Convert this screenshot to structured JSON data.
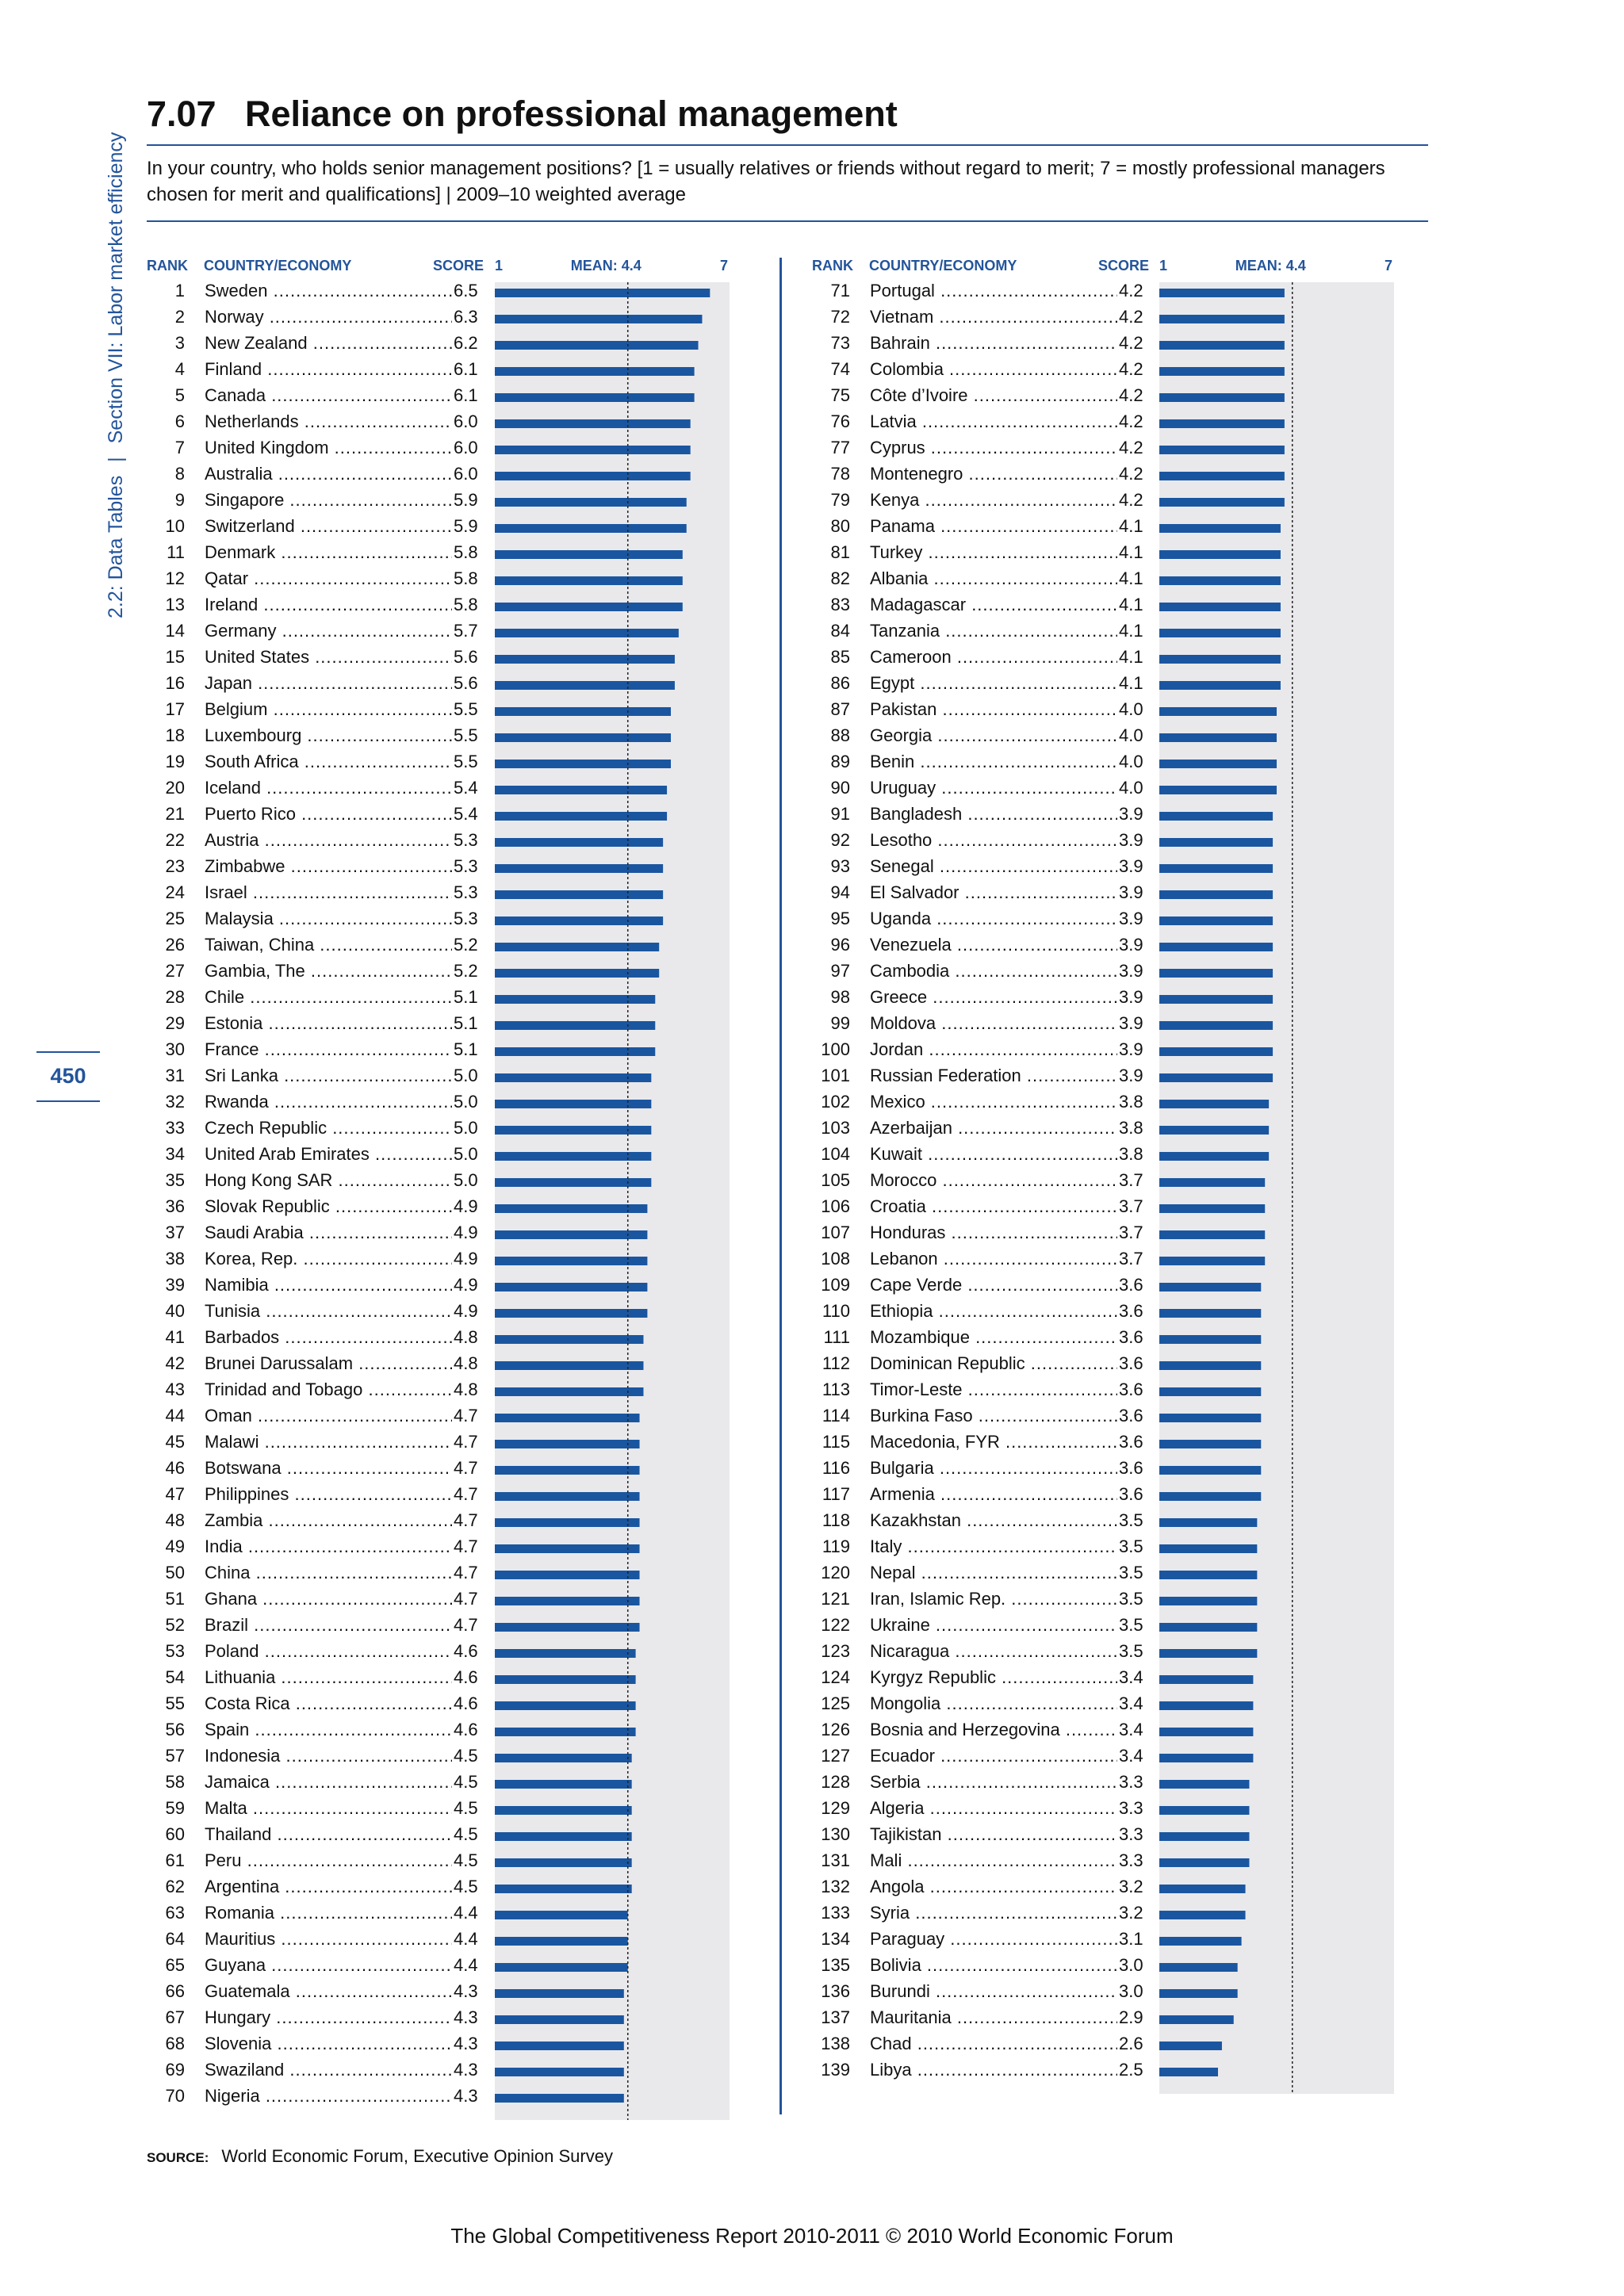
{
  "section_label": "2.2: Data Tables",
  "section_sep": "|",
  "section_name": "Section VII: Labor market efficiency",
  "page_number": "450",
  "title_number": "7.07",
  "title": "Reliance on professional management",
  "subtitle": "In your country, who holds senior management positions? [1 = usually relatives or friends without regard to merit; 7 = mostly professional managers chosen for merit and qualifications] | 2009–10 weighted average",
  "headers": {
    "rank": "RANK",
    "country": "COUNTRY/ECONOMY",
    "score": "SCORE",
    "axis_min": "1",
    "mean": "MEAN: 4.4",
    "axis_max": "7"
  },
  "source_label": "SOURCE:",
  "source_text": "World Economic Forum, Executive Opinion Survey",
  "footer": "The Global Competitiveness Report 2010-2011 © 2010 World Economic Forum",
  "colors": {
    "accent": "#23549b",
    "bar": "#1a56a0",
    "plot_bg": "#e9e9ec"
  },
  "chart_data": {
    "type": "bar",
    "orientation": "horizontal",
    "xlim": [
      1,
      7
    ],
    "mean": 4.4,
    "rows": [
      {
        "rank": 1,
        "country": "Sweden",
        "score": 6.5
      },
      {
        "rank": 2,
        "country": "Norway",
        "score": 6.3
      },
      {
        "rank": 3,
        "country": "New Zealand",
        "score": 6.2
      },
      {
        "rank": 4,
        "country": "Finland",
        "score": 6.1
      },
      {
        "rank": 5,
        "country": "Canada",
        "score": 6.1
      },
      {
        "rank": 6,
        "country": "Netherlands",
        "score": 6.0
      },
      {
        "rank": 7,
        "country": "United Kingdom",
        "score": 6.0
      },
      {
        "rank": 8,
        "country": "Australia",
        "score": 6.0
      },
      {
        "rank": 9,
        "country": "Singapore",
        "score": 5.9
      },
      {
        "rank": 10,
        "country": "Switzerland",
        "score": 5.9
      },
      {
        "rank": 11,
        "country": "Denmark",
        "score": 5.8
      },
      {
        "rank": 12,
        "country": "Qatar",
        "score": 5.8
      },
      {
        "rank": 13,
        "country": "Ireland",
        "score": 5.8
      },
      {
        "rank": 14,
        "country": "Germany",
        "score": 5.7
      },
      {
        "rank": 15,
        "country": "United States",
        "score": 5.6
      },
      {
        "rank": 16,
        "country": "Japan",
        "score": 5.6
      },
      {
        "rank": 17,
        "country": "Belgium",
        "score": 5.5
      },
      {
        "rank": 18,
        "country": "Luxembourg",
        "score": 5.5
      },
      {
        "rank": 19,
        "country": "South Africa",
        "score": 5.5
      },
      {
        "rank": 20,
        "country": "Iceland",
        "score": 5.4
      },
      {
        "rank": 21,
        "country": "Puerto Rico",
        "score": 5.4
      },
      {
        "rank": 22,
        "country": "Austria",
        "score": 5.3
      },
      {
        "rank": 23,
        "country": "Zimbabwe",
        "score": 5.3
      },
      {
        "rank": 24,
        "country": "Israel",
        "score": 5.3
      },
      {
        "rank": 25,
        "country": "Malaysia",
        "score": 5.3
      },
      {
        "rank": 26,
        "country": "Taiwan, China",
        "score": 5.2
      },
      {
        "rank": 27,
        "country": "Gambia, The",
        "score": 5.2
      },
      {
        "rank": 28,
        "country": "Chile",
        "score": 5.1
      },
      {
        "rank": 29,
        "country": "Estonia",
        "score": 5.1
      },
      {
        "rank": 30,
        "country": "France",
        "score": 5.1
      },
      {
        "rank": 31,
        "country": "Sri Lanka",
        "score": 5.0
      },
      {
        "rank": 32,
        "country": "Rwanda",
        "score": 5.0
      },
      {
        "rank": 33,
        "country": "Czech Republic",
        "score": 5.0
      },
      {
        "rank": 34,
        "country": "United Arab Emirates",
        "score": 5.0
      },
      {
        "rank": 35,
        "country": "Hong Kong SAR",
        "score": 5.0
      },
      {
        "rank": 36,
        "country": "Slovak Republic",
        "score": 4.9
      },
      {
        "rank": 37,
        "country": "Saudi Arabia",
        "score": 4.9
      },
      {
        "rank": 38,
        "country": "Korea, Rep.",
        "score": 4.9
      },
      {
        "rank": 39,
        "country": "Namibia",
        "score": 4.9
      },
      {
        "rank": 40,
        "country": "Tunisia",
        "score": 4.9
      },
      {
        "rank": 41,
        "country": "Barbados",
        "score": 4.8
      },
      {
        "rank": 42,
        "country": "Brunei Darussalam",
        "score": 4.8
      },
      {
        "rank": 43,
        "country": "Trinidad and Tobago",
        "score": 4.8
      },
      {
        "rank": 44,
        "country": "Oman",
        "score": 4.7
      },
      {
        "rank": 45,
        "country": "Malawi",
        "score": 4.7
      },
      {
        "rank": 46,
        "country": "Botswana",
        "score": 4.7
      },
      {
        "rank": 47,
        "country": "Philippines",
        "score": 4.7
      },
      {
        "rank": 48,
        "country": "Zambia",
        "score": 4.7
      },
      {
        "rank": 49,
        "country": "India",
        "score": 4.7
      },
      {
        "rank": 50,
        "country": "China",
        "score": 4.7
      },
      {
        "rank": 51,
        "country": "Ghana",
        "score": 4.7
      },
      {
        "rank": 52,
        "country": "Brazil",
        "score": 4.7
      },
      {
        "rank": 53,
        "country": "Poland",
        "score": 4.6
      },
      {
        "rank": 54,
        "country": "Lithuania",
        "score": 4.6
      },
      {
        "rank": 55,
        "country": "Costa Rica",
        "score": 4.6
      },
      {
        "rank": 56,
        "country": "Spain",
        "score": 4.6
      },
      {
        "rank": 57,
        "country": "Indonesia",
        "score": 4.5
      },
      {
        "rank": 58,
        "country": "Jamaica",
        "score": 4.5
      },
      {
        "rank": 59,
        "country": "Malta",
        "score": 4.5
      },
      {
        "rank": 60,
        "country": "Thailand",
        "score": 4.5
      },
      {
        "rank": 61,
        "country": "Peru",
        "score": 4.5
      },
      {
        "rank": 62,
        "country": "Argentina",
        "score": 4.5
      },
      {
        "rank": 63,
        "country": "Romania",
        "score": 4.4
      },
      {
        "rank": 64,
        "country": "Mauritius",
        "score": 4.4
      },
      {
        "rank": 65,
        "country": "Guyana",
        "score": 4.4
      },
      {
        "rank": 66,
        "country": "Guatemala",
        "score": 4.3
      },
      {
        "rank": 67,
        "country": "Hungary",
        "score": 4.3
      },
      {
        "rank": 68,
        "country": "Slovenia",
        "score": 4.3
      },
      {
        "rank": 69,
        "country": "Swaziland",
        "score": 4.3
      },
      {
        "rank": 70,
        "country": "Nigeria",
        "score": 4.3
      },
      {
        "rank": 71,
        "country": "Portugal",
        "score": 4.2
      },
      {
        "rank": 72,
        "country": "Vietnam",
        "score": 4.2
      },
      {
        "rank": 73,
        "country": "Bahrain",
        "score": 4.2
      },
      {
        "rank": 74,
        "country": "Colombia",
        "score": 4.2
      },
      {
        "rank": 75,
        "country": "Côte d’Ivoire",
        "score": 4.2
      },
      {
        "rank": 76,
        "country": "Latvia",
        "score": 4.2
      },
      {
        "rank": 77,
        "country": "Cyprus",
        "score": 4.2
      },
      {
        "rank": 78,
        "country": "Montenegro",
        "score": 4.2
      },
      {
        "rank": 79,
        "country": "Kenya",
        "score": 4.2
      },
      {
        "rank": 80,
        "country": "Panama",
        "score": 4.1
      },
      {
        "rank": 81,
        "country": "Turkey",
        "score": 4.1
      },
      {
        "rank": 82,
        "country": "Albania",
        "score": 4.1
      },
      {
        "rank": 83,
        "country": "Madagascar",
        "score": 4.1
      },
      {
        "rank": 84,
        "country": "Tanzania",
        "score": 4.1
      },
      {
        "rank": 85,
        "country": "Cameroon",
        "score": 4.1
      },
      {
        "rank": 86,
        "country": "Egypt",
        "score": 4.1
      },
      {
        "rank": 87,
        "country": "Pakistan",
        "score": 4.0
      },
      {
        "rank": 88,
        "country": "Georgia",
        "score": 4.0
      },
      {
        "rank": 89,
        "country": "Benin",
        "score": 4.0
      },
      {
        "rank": 90,
        "country": "Uruguay",
        "score": 4.0
      },
      {
        "rank": 91,
        "country": "Bangladesh",
        "score": 3.9
      },
      {
        "rank": 92,
        "country": "Lesotho",
        "score": 3.9
      },
      {
        "rank": 93,
        "country": "Senegal",
        "score": 3.9
      },
      {
        "rank": 94,
        "country": "El Salvador",
        "score": 3.9
      },
      {
        "rank": 95,
        "country": "Uganda",
        "score": 3.9
      },
      {
        "rank": 96,
        "country": "Venezuela",
        "score": 3.9
      },
      {
        "rank": 97,
        "country": "Cambodia",
        "score": 3.9
      },
      {
        "rank": 98,
        "country": "Greece",
        "score": 3.9
      },
      {
        "rank": 99,
        "country": "Moldova",
        "score": 3.9
      },
      {
        "rank": 100,
        "country": "Jordan",
        "score": 3.9
      },
      {
        "rank": 101,
        "country": "Russian Federation",
        "score": 3.9
      },
      {
        "rank": 102,
        "country": "Mexico",
        "score": 3.8
      },
      {
        "rank": 103,
        "country": "Azerbaijan",
        "score": 3.8
      },
      {
        "rank": 104,
        "country": "Kuwait",
        "score": 3.8
      },
      {
        "rank": 105,
        "country": "Morocco",
        "score": 3.7
      },
      {
        "rank": 106,
        "country": "Croatia",
        "score": 3.7
      },
      {
        "rank": 107,
        "country": "Honduras",
        "score": 3.7
      },
      {
        "rank": 108,
        "country": "Lebanon",
        "score": 3.7
      },
      {
        "rank": 109,
        "country": "Cape Verde",
        "score": 3.6
      },
      {
        "rank": 110,
        "country": "Ethiopia",
        "score": 3.6
      },
      {
        "rank": 111,
        "country": "Mozambique",
        "score": 3.6
      },
      {
        "rank": 112,
        "country": "Dominican Republic",
        "score": 3.6
      },
      {
        "rank": 113,
        "country": "Timor-Leste",
        "score": 3.6
      },
      {
        "rank": 114,
        "country": "Burkina Faso",
        "score": 3.6
      },
      {
        "rank": 115,
        "country": "Macedonia, FYR",
        "score": 3.6
      },
      {
        "rank": 116,
        "country": "Bulgaria",
        "score": 3.6
      },
      {
        "rank": 117,
        "country": "Armenia",
        "score": 3.6
      },
      {
        "rank": 118,
        "country": "Kazakhstan",
        "score": 3.5
      },
      {
        "rank": 119,
        "country": "Italy",
        "score": 3.5
      },
      {
        "rank": 120,
        "country": "Nepal",
        "score": 3.5
      },
      {
        "rank": 121,
        "country": "Iran, Islamic Rep.",
        "score": 3.5
      },
      {
        "rank": 122,
        "country": "Ukraine",
        "score": 3.5
      },
      {
        "rank": 123,
        "country": "Nicaragua",
        "score": 3.5
      },
      {
        "rank": 124,
        "country": "Kyrgyz Republic",
        "score": 3.4
      },
      {
        "rank": 125,
        "country": "Mongolia",
        "score": 3.4
      },
      {
        "rank": 126,
        "country": "Bosnia and Herzegovina",
        "score": 3.4
      },
      {
        "rank": 127,
        "country": "Ecuador",
        "score": 3.4
      },
      {
        "rank": 128,
        "country": "Serbia",
        "score": 3.3
      },
      {
        "rank": 129,
        "country": "Algeria",
        "score": 3.3
      },
      {
        "rank": 130,
        "country": "Tajikistan",
        "score": 3.3
      },
      {
        "rank": 131,
        "country": "Mali",
        "score": 3.3
      },
      {
        "rank": 132,
        "country": "Angola",
        "score": 3.2
      },
      {
        "rank": 133,
        "country": "Syria",
        "score": 3.2
      },
      {
        "rank": 134,
        "country": "Paraguay",
        "score": 3.1
      },
      {
        "rank": 135,
        "country": "Bolivia",
        "score": 3.0
      },
      {
        "rank": 136,
        "country": "Burundi",
        "score": 3.0
      },
      {
        "rank": 137,
        "country": "Mauritania",
        "score": 2.9
      },
      {
        "rank": 138,
        "country": "Chad",
        "score": 2.6
      },
      {
        "rank": 139,
        "country": "Libya",
        "score": 2.5
      }
    ]
  }
}
